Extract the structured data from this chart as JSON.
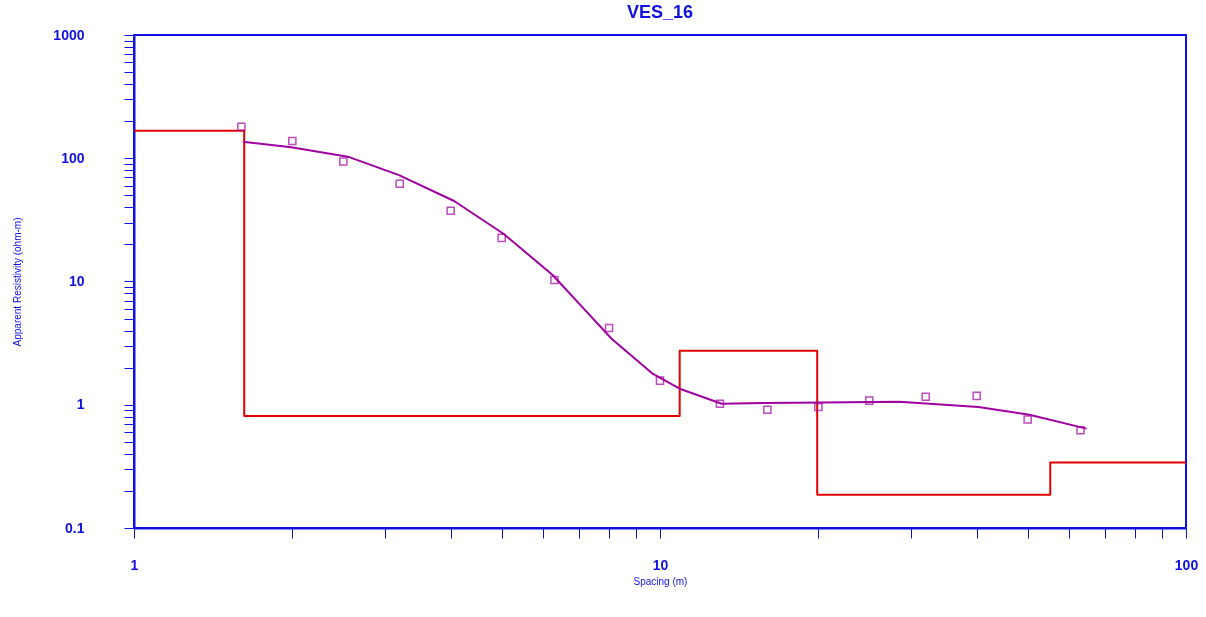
{
  "chart_data": {
    "type": "line",
    "title": "VES_16",
    "xlabel": "Spacing (m)",
    "ylabel": "Apparent Resistivity (ohm-m)",
    "log": "xy",
    "grid": false,
    "xlim": [
      1,
      100
    ],
    "ylim": [
      0.1,
      1000
    ],
    "xticks": [
      1,
      {
        "value": 2,
        "label": null
      },
      {
        "value": 3,
        "label": null
      },
      {
        "value": 4,
        "label": null
      },
      {
        "value": 5,
        "label": null
      },
      {
        "value": 6,
        "label": null
      },
      {
        "value": 7,
        "label": null
      },
      {
        "value": 8,
        "label": null
      },
      {
        "value": 9,
        "label": null
      },
      10,
      {
        "value": 20,
        "label": null
      },
      {
        "value": 30,
        "label": null
      },
      {
        "value": 40,
        "label": null
      },
      {
        "value": 50,
        "label": null
      },
      {
        "value": 60,
        "label": null
      },
      {
        "value": 70,
        "label": null
      },
      {
        "value": 80,
        "label": null
      },
      {
        "value": 90,
        "label": null
      },
      100
    ],
    "yticks": [
      0.1,
      {
        "value": 0.2,
        "label": null
      },
      {
        "value": 0.3,
        "label": null
      },
      {
        "value": 0.4,
        "label": null
      },
      {
        "value": 0.5,
        "label": null
      },
      {
        "value": 0.6,
        "label": null
      },
      {
        "value": 0.7,
        "label": null
      },
      {
        "value": 0.8,
        "label": null
      },
      {
        "value": 0.9,
        "label": null
      },
      1,
      {
        "value": 2,
        "label": null
      },
      {
        "value": 3,
        "label": null
      },
      {
        "value": 4,
        "label": null
      },
      {
        "value": 5,
        "label": null
      },
      {
        "value": 6,
        "label": null
      },
      {
        "value": 7,
        "label": null
      },
      {
        "value": 8,
        "label": null
      },
      {
        "value": 9,
        "label": null
      },
      10,
      {
        "value": 20,
        "label": null
      },
      {
        "value": 30,
        "label": null
      },
      {
        "value": 40,
        "label": null
      },
      {
        "value": 50,
        "label": null
      },
      {
        "value": 60,
        "label": null
      },
      {
        "value": 70,
        "label": null
      },
      {
        "value": 80,
        "label": null
      },
      {
        "value": 90,
        "label": null
      },
      100,
      {
        "value": 200,
        "label": null
      },
      {
        "value": 300,
        "label": null
      },
      {
        "value": 400,
        "label": null
      },
      {
        "value": 500,
        "label": null
      },
      {
        "value": 600,
        "label": null
      },
      {
        "value": 700,
        "label": null
      },
      {
        "value": 800,
        "label": null
      },
      {
        "value": 900,
        "label": null
      },
      1000
    ],
    "series": [
      {
        "color": "#e00000",
        "x": [
          1,
          1.62,
          1.62,
          10.9,
          10.9,
          19.9,
          19.9,
          55.2,
          55.2,
          100
        ],
        "values": [
          167,
          167,
          0.81,
          0.81,
          2.74,
          2.74,
          0.186,
          0.186,
          0.34,
          0.34
        ]
      },
      {
        "color": "#a000a0",
        "marker": "none",
        "x": [
          1.61,
          1.99,
          2.55,
          3.19,
          4.06,
          5.04,
          6.25,
          7.17,
          8.09,
          9.66,
          10.9,
          13.1,
          18.1,
          28.5,
          40.3,
          50.4,
          64.7
        ],
        "values": [
          136,
          123,
          103,
          73,
          45,
          24.4,
          11.3,
          6.0,
          3.43,
          1.8,
          1.35,
          1.02,
          1.04,
          1.06,
          0.96,
          0.83,
          0.64
        ]
      },
      {
        "type": "scatter",
        "color": "#a000a0",
        "marker": "square",
        "x": [
          1.6,
          2,
          2.5,
          3.2,
          4,
          5,
          6.3,
          8,
          10,
          13,
          16,
          20,
          25,
          32,
          40,
          50,
          63
        ],
        "values": [
          180,
          138,
          94,
          62,
          37.5,
          22.6,
          10.3,
          4.2,
          1.57,
          1.02,
          0.91,
          0.96,
          1.08,
          1.16,
          1.18,
          0.76,
          0.62
        ]
      }
    ]
  }
}
